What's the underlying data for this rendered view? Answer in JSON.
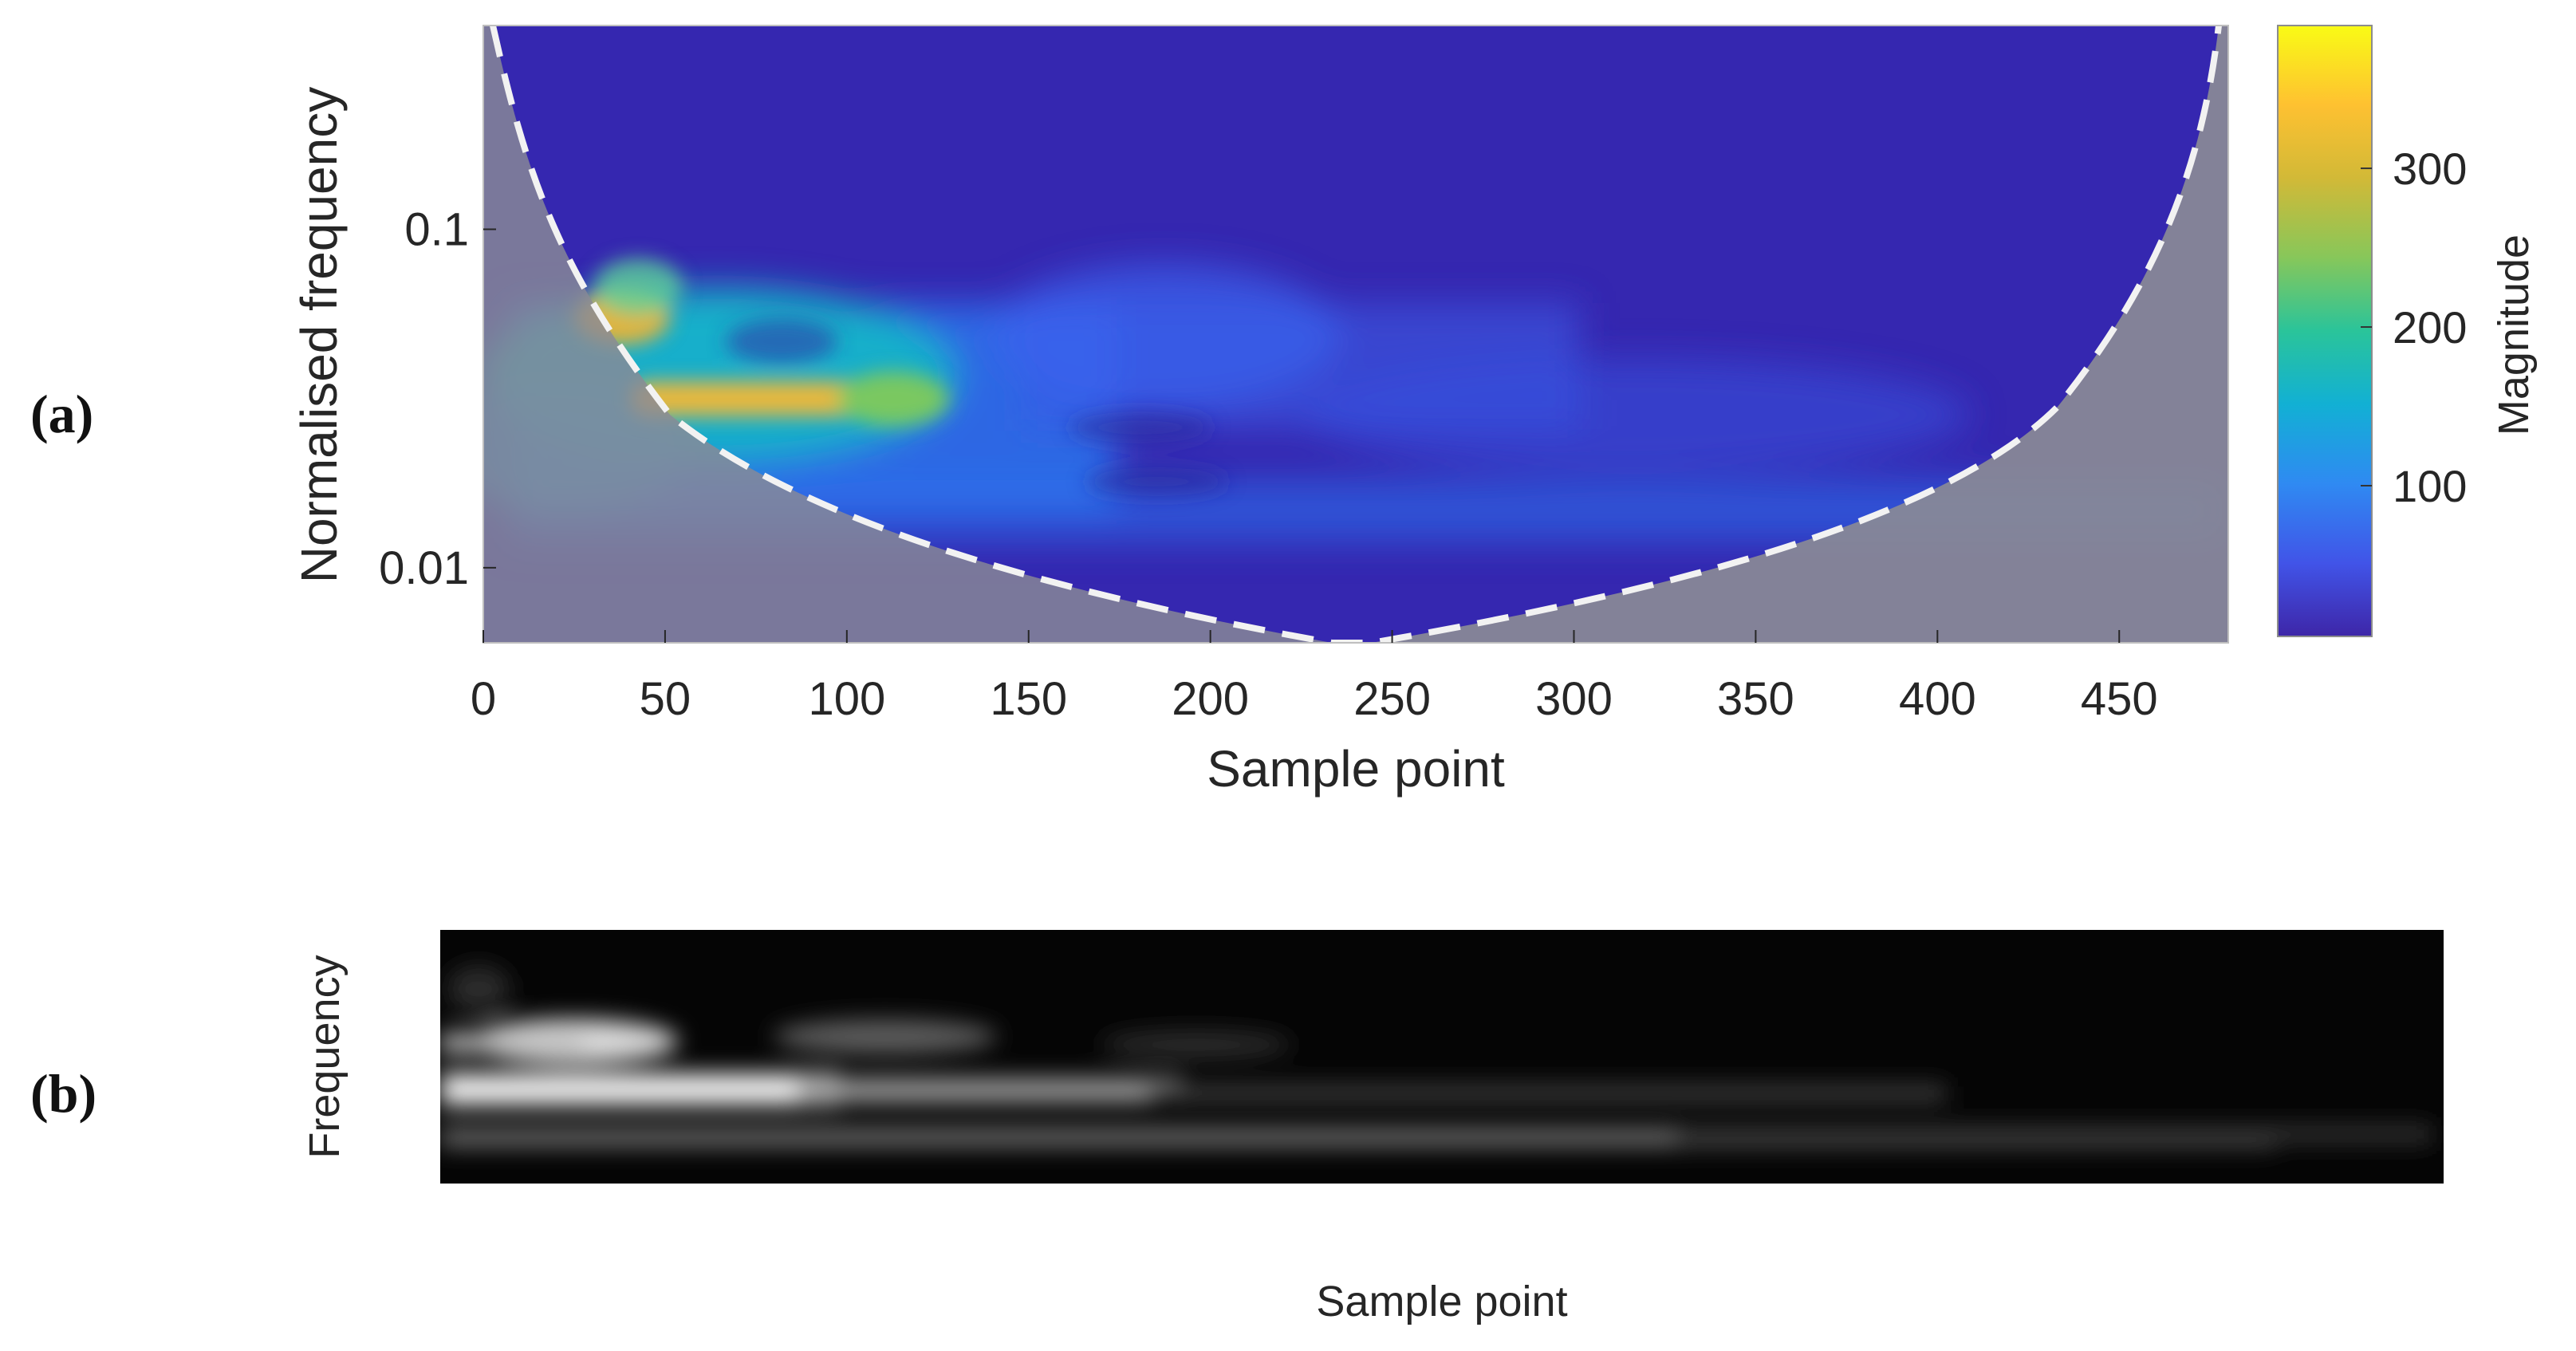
{
  "panels": {
    "a": {
      "label": "(a)"
    },
    "b": {
      "label": "(b)"
    }
  },
  "chart_data": [
    {
      "type": "heatmap",
      "panel": "(a)",
      "title": "",
      "xlabel": "Sample point",
      "ylabel": "Normalised frequency",
      "xlim": [
        0,
        480
      ],
      "ylim": [
        0.006,
        0.4
      ],
      "yscale": "log",
      "x_ticks": [
        0,
        50,
        100,
        150,
        200,
        250,
        300,
        350,
        400,
        450
      ],
      "y_ticks": [
        {
          "value": 0.01,
          "label": "0.01"
        },
        {
          "value": 0.1,
          "label": "0.1"
        }
      ],
      "colorbar": {
        "label": "Magnitude",
        "range": [
          5,
          390
        ],
        "ticks": [
          100,
          200,
          300
        ],
        "colormap": [
          "#3e26a8",
          "#4154e8",
          "#2f8af2",
          "#12b0d4",
          "#2ac49a",
          "#87c75a",
          "#d2b937",
          "#fec131",
          "#f9fb15"
        ]
      },
      "cone_of_influence": {
        "style": "white dashed",
        "shaded_color": "#8a8a96",
        "apex_x": 240,
        "apex_y": 0.006
      },
      "features": [
        {
          "x": 40,
          "y": 0.05,
          "magnitude": 300,
          "description": ""
        },
        {
          "x": 90,
          "y": 0.03,
          "magnitude": 280,
          "description": ""
        }
      ],
      "grid": false
    },
    {
      "type": "heatmap",
      "panel": "(b)",
      "title": "",
      "xlabel": "Sample point",
      "ylabel": "Frequency",
      "colormap": "gray",
      "grid": false
    }
  ]
}
